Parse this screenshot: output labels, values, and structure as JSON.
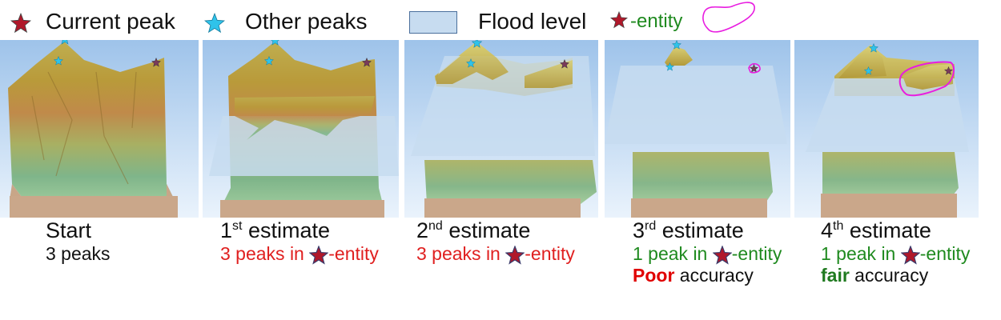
{
  "legend": {
    "current_peak": "Current peak",
    "other_peaks": "Other peaks",
    "flood_level": "Flood level",
    "entity": "-entity"
  },
  "panels": [
    {
      "title_main": "Start",
      "title_sup": "",
      "title_rest": "",
      "line1": "3 peaks",
      "accuracy_word": "",
      "accuracy_rest": ""
    },
    {
      "title_main": "1",
      "title_sup": "st",
      "title_rest": " estimate",
      "line1_pre": "3 peaks in ",
      "line1_post": "-entity",
      "accuracy_word": "",
      "accuracy_rest": ""
    },
    {
      "title_main": "2",
      "title_sup": "nd",
      "title_rest": " estimate",
      "line1_pre": "3 peaks in ",
      "line1_post": "-entity",
      "accuracy_word": "",
      "accuracy_rest": ""
    },
    {
      "title_main": "3",
      "title_sup": "rd",
      "title_rest": " estimate",
      "line1_pre": "1 peak in ",
      "line1_post": "-entity",
      "accuracy_word": "Poor",
      "accuracy_rest": " accuracy"
    },
    {
      "title_main": "4",
      "title_sup": "th",
      "title_rest": " estimate",
      "line1_pre": "1 peak in ",
      "line1_post": "-entity",
      "accuracy_word": "fair",
      "accuracy_rest": " accuracy"
    }
  ],
  "colors": {
    "current_peak_star": "#b0182a",
    "other_peak_star": "#2fc3ea",
    "flood": "#c7dcf0",
    "entity_outline": "#e81ce0",
    "red_text": "#e02020",
    "green_text": "#1f8a1f"
  },
  "icons": [
    "current-peak-star-icon",
    "other-peak-star-icon",
    "flood-level-swatch",
    "entity-outline-icon"
  ]
}
